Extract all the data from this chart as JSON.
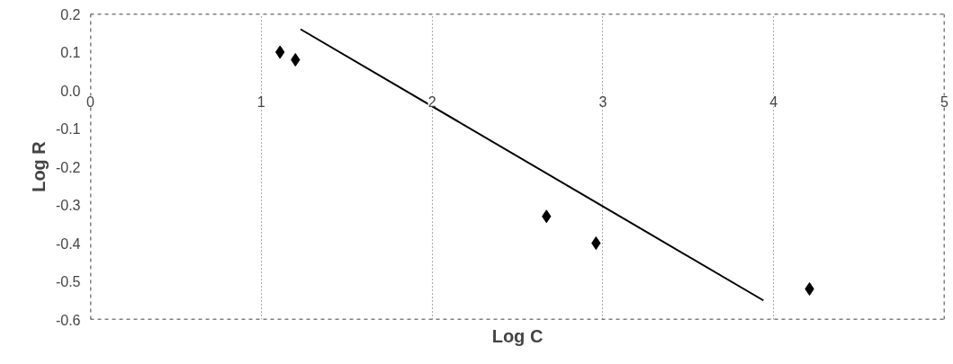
{
  "chart_data": {
    "type": "scatter",
    "xlabel": "Log C",
    "ylabel": "Log R",
    "xlim": [
      0,
      5
    ],
    "ylim": [
      -0.6,
      0.2
    ],
    "xticks": [
      0,
      1,
      2,
      3,
      4,
      5
    ],
    "yticks": [
      {
        "value": -0.6,
        "label": "-0.6"
      },
      {
        "value": -0.5,
        "label": "-0.5"
      },
      {
        "value": -0.4,
        "label": "-0.4"
      },
      {
        "value": -0.3,
        "label": "-0.3"
      },
      {
        "value": -0.2,
        "label": "-0.2"
      },
      {
        "value": -0.1,
        "label": "-0.1"
      },
      {
        "value": 0,
        "label": "0.0"
      },
      {
        "value": 0.1,
        "label": "0.1"
      },
      {
        "value": 0.2,
        "label": "0.2"
      }
    ],
    "grid": "x",
    "series": [
      {
        "marker": "diamond",
        "color": "#000000",
        "x": [
          1.11,
          1.2,
          2.67,
          2.96,
          4.21
        ],
        "values": [
          0.1,
          0.08,
          -0.33,
          -0.4,
          -0.52
        ]
      },
      {
        "type": "line",
        "color": "#000000",
        "x": [
          1.23,
          3.94
        ],
        "values": [
          0.16,
          -0.55
        ]
      }
    ]
  }
}
